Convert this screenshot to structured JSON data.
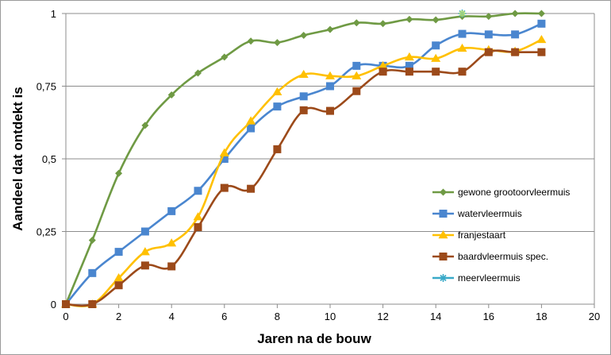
{
  "chart_data": {
    "type": "line",
    "title": "",
    "xlabel": "Jaren na de bouw",
    "ylabel": "Aandeel dat ontdekt is",
    "xlim": [
      0,
      20
    ],
    "ylim": [
      0,
      1
    ],
    "x_ticks": [
      0,
      2,
      4,
      6,
      8,
      10,
      12,
      14,
      16,
      18,
      20
    ],
    "x_tick_labels": [
      "0",
      "2",
      "4",
      "6",
      "8",
      "10",
      "12",
      "14",
      "16",
      "18",
      "20"
    ],
    "y_ticks": [
      0,
      0.25,
      0.5,
      0.75,
      1
    ],
    "y_tick_labels": [
      "0",
      "0,25",
      "0,5",
      "0,75",
      "1"
    ],
    "grid": "horizontal",
    "legend_position": "right",
    "series": [
      {
        "name": "gewone grootoorvleermuis",
        "color": "#6f9a44",
        "marker": "diamond",
        "x": [
          0,
          1,
          2,
          3,
          4,
          5,
          6,
          7,
          8,
          9,
          10,
          11,
          12,
          13,
          14,
          15,
          16,
          17,
          18
        ],
        "values": [
          0,
          0.22,
          0.45,
          0.615,
          0.72,
          0.795,
          0.85,
          0.905,
          0.9,
          0.925,
          0.945,
          0.968,
          0.965,
          0.98,
          0.978,
          0.99,
          0.99,
          1,
          1
        ]
      },
      {
        "name": "watervleermuis",
        "color": "#4a86cf",
        "marker": "square",
        "x": [
          0,
          1,
          2,
          3,
          4,
          5,
          6,
          7,
          8,
          9,
          10,
          11,
          12,
          13,
          14,
          15,
          16,
          17,
          18
        ],
        "values": [
          0,
          0.107,
          0.18,
          0.25,
          0.32,
          0.39,
          0.5,
          0.605,
          0.68,
          0.715,
          0.75,
          0.82,
          0.82,
          0.82,
          0.89,
          0.93,
          0.928,
          0.928,
          0.965
        ]
      },
      {
        "name": "franjestaart",
        "color": "#ffc000",
        "marker": "triangle",
        "x": [
          0,
          1,
          2,
          3,
          4,
          5,
          6,
          7,
          8,
          9,
          10,
          11,
          12,
          13,
          14,
          15,
          16,
          17,
          18
        ],
        "values": [
          0,
          0,
          0.09,
          0.18,
          0.21,
          0.3,
          0.52,
          0.63,
          0.73,
          0.79,
          0.785,
          0.785,
          0.82,
          0.85,
          0.845,
          0.88,
          0.875,
          0.87,
          0.91
        ]
      },
      {
        "name": "baardvleermuis spec.",
        "color": "#9c4a1a",
        "marker": "square",
        "x": [
          0,
          1,
          2,
          3,
          4,
          5,
          6,
          7,
          8,
          9,
          10,
          11,
          12,
          13,
          14,
          15,
          16,
          17,
          18
        ],
        "values": [
          0,
          0,
          0.065,
          0.133,
          0.13,
          0.265,
          0.4,
          0.397,
          0.533,
          0.667,
          0.665,
          0.733,
          0.8,
          0.8,
          0.8,
          0.8,
          0.867,
          0.867,
          0.867
        ]
      },
      {
        "name": "meervleermuis",
        "color": "#39a9c8",
        "marker": "asterisk",
        "x": [
          15
        ],
        "values": [
          1
        ]
      }
    ]
  }
}
